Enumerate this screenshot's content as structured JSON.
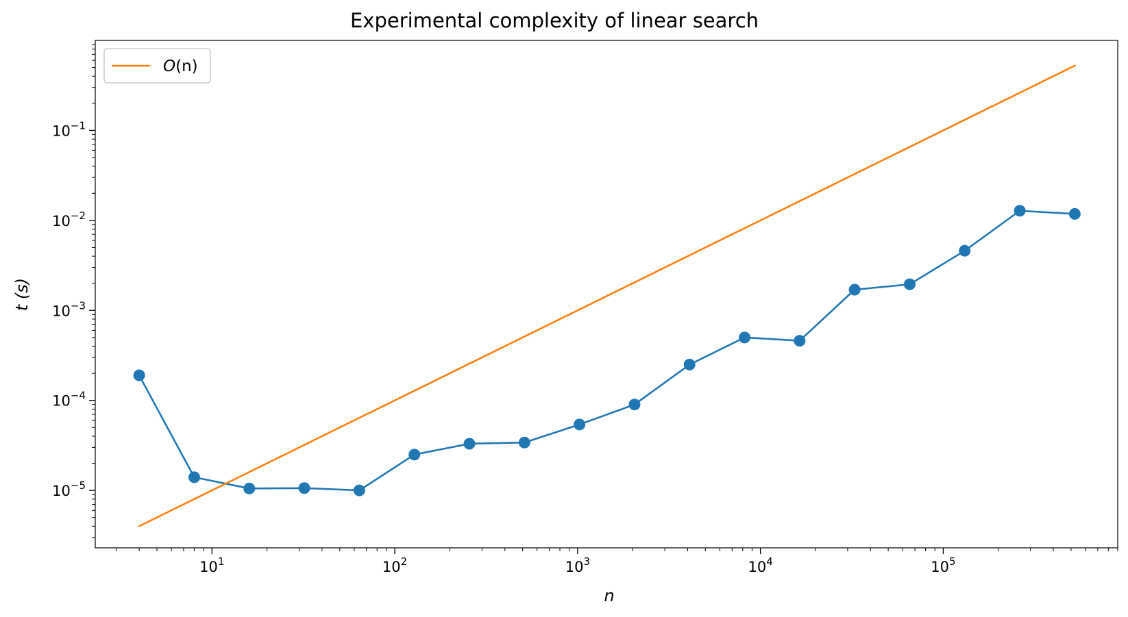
{
  "colors": {
    "measured": "#1f77b4",
    "reference": "#ff7f0e",
    "axes": "#000000",
    "background": "#ffffff"
  },
  "chart_data": {
    "type": "line",
    "title": "Experimental complexity of linear search",
    "xlabel": "n",
    "ylabel": "t (s)",
    "xscale": "log",
    "yscale": "log",
    "xlim": [
      2.3,
      900000
    ],
    "ylim": [
      2.3e-06,
      1.0
    ],
    "x_ticks": [
      {
        "value": 10,
        "label": "10",
        "exp": "1"
      },
      {
        "value": 100,
        "label": "10",
        "exp": "2"
      },
      {
        "value": 1000,
        "label": "10",
        "exp": "3"
      },
      {
        "value": 10000,
        "label": "10",
        "exp": "4"
      },
      {
        "value": 100000,
        "label": "10",
        "exp": "5"
      }
    ],
    "y_ticks": [
      {
        "value": 1e-05,
        "label": "10",
        "exp": "−5"
      },
      {
        "value": 0.0001,
        "label": "10",
        "exp": "−4"
      },
      {
        "value": 0.001,
        "label": "10",
        "exp": "−3"
      },
      {
        "value": 0.01,
        "label": "10",
        "exp": "−2"
      },
      {
        "value": 0.1,
        "label": "10",
        "exp": "−1"
      }
    ],
    "grid": false,
    "legend": {
      "placement": "upper-left",
      "entries": [
        {
          "label_main": "O",
          "label_rest": "(n)",
          "series": "O(n)"
        }
      ]
    },
    "series": [
      {
        "name": "",
        "color": "#1f77b4",
        "marker": "circle",
        "x": [
          4,
          8,
          16,
          32,
          64,
          128,
          256,
          512,
          1024,
          2048,
          4096,
          8192,
          16384,
          32768,
          65536,
          131072,
          262144,
          524288
        ],
        "y": [
          0.00019,
          1.4e-05,
          1.05e-05,
          1.06e-05,
          1e-05,
          2.5e-05,
          3.3e-05,
          3.4e-05,
          5.4e-05,
          9e-05,
          0.00025,
          0.0005,
          0.00046,
          0.0017,
          0.00195,
          0.0046,
          0.0128,
          0.0118
        ]
      },
      {
        "name": "O(n)",
        "color": "#ff7f0e",
        "marker": "none",
        "x": [
          4,
          524288
        ],
        "y": [
          4e-06,
          0.524288
        ]
      }
    ]
  }
}
